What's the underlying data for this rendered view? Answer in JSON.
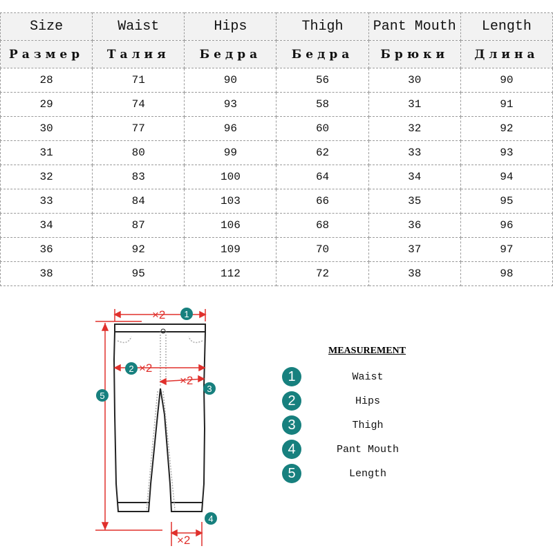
{
  "table": {
    "headers_en": [
      "Size",
      "Waist",
      "Hips",
      "Thigh",
      "Pant Mouth",
      "Length"
    ],
    "headers_ru": [
      "Размер",
      "Талия",
      "Бедра",
      "Бедра",
      "Брюки",
      "Длина"
    ],
    "rows": [
      [
        "28",
        "71",
        "90",
        "56",
        "30",
        "90"
      ],
      [
        "29",
        "74",
        "93",
        "58",
        "31",
        "91"
      ],
      [
        "30",
        "77",
        "96",
        "60",
        "32",
        "92"
      ],
      [
        "31",
        "80",
        "99",
        "62",
        "33",
        "93"
      ],
      [
        "32",
        "83",
        "100",
        "64",
        "34",
        "94"
      ],
      [
        "33",
        "84",
        "103",
        "66",
        "35",
        "95"
      ],
      [
        "34",
        "87",
        "106",
        "68",
        "36",
        "96"
      ],
      [
        "36",
        "92",
        "109",
        "70",
        "37",
        "97"
      ],
      [
        "38",
        "95",
        "112",
        "72",
        "38",
        "98"
      ]
    ]
  },
  "diagram": {
    "multiplier": "×2",
    "markers": [
      "1",
      "2",
      "3",
      "4",
      "5"
    ],
    "arrow_color": "#e0302c",
    "marker_color": "#17807e"
  },
  "legend": {
    "title": "MEASUREMENT",
    "items": [
      {
        "num": "1",
        "label": "Waist"
      },
      {
        "num": "2",
        "label": "Hips"
      },
      {
        "num": "3",
        "label": "Thigh"
      },
      {
        "num": "4",
        "label": "Pant Mouth"
      },
      {
        "num": "5",
        "label": "Length"
      }
    ]
  }
}
